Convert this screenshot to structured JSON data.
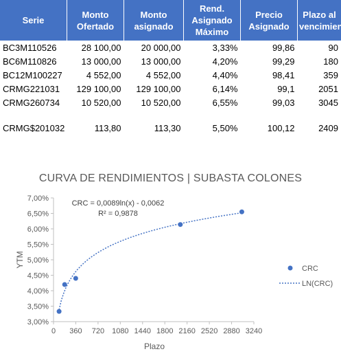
{
  "table": {
    "headers": [
      "Serie",
      "Monto Ofertado",
      "Monto asignado",
      "Rend. Asignado Máximo",
      "Precio Asignado",
      "Plazo al vencimiento"
    ],
    "rows": [
      [
        "BC3M110526",
        "28 100,00",
        "20 000,00",
        "3,33%",
        "99,86",
        "90"
      ],
      [
        "BC6M110826",
        "13 000,00",
        "13 000,00",
        "4,20%",
        "99,29",
        "180"
      ],
      [
        "BC12M100227",
        "4 552,00",
        "4 552,00",
        "4,40%",
        "98,41",
        "359"
      ],
      [
        "CRMG221031",
        "129 100,00",
        "129 100,00",
        "6,14%",
        "99,1",
        "2051"
      ],
      [
        "CRMG260734",
        "10 520,00",
        "10 520,00",
        "6,55%",
        "99,03",
        "3045"
      ]
    ],
    "extra_row": [
      "CRMG$201032",
      "113,80",
      "113,30",
      "5,50%",
      "100,12",
      "2409"
    ]
  },
  "chart_data": {
    "type": "scatter",
    "title": "CURVA DE RENDIMIENTOS | SUBASTA COLONES",
    "xlabel": "Plazo",
    "ylabel": "YTM",
    "xlim": [
      0,
      3240
    ],
    "ylim": [
      3.0,
      7.0
    ],
    "xticks": [
      "0",
      "360",
      "720",
      "1080",
      "1440",
      "1800",
      "2160",
      "2520",
      "2880",
      "3240"
    ],
    "yticks": [
      "3,00%",
      "3,50%",
      "4,00%",
      "4,50%",
      "5,00%",
      "5,50%",
      "6,00%",
      "6,50%",
      "7,00%"
    ],
    "series": [
      {
        "name": "CRC",
        "x": [
          90,
          180,
          359,
          2051,
          3045
        ],
        "y": [
          3.33,
          4.2,
          4.4,
          6.14,
          6.55
        ]
      }
    ],
    "trendline": {
      "name": "LN(CRC)",
      "type": "logarithmic",
      "a": 0.0089,
      "b": -0.0062
    },
    "annotations": [
      "CRC = 0,0089ln(x) - 0,0062",
      "R² = 0,9878"
    ],
    "legend": "right",
    "grid": false,
    "colors": {
      "series": "#4472c4",
      "header_bg": "#4472c4",
      "axis": "#bfbfbf"
    }
  }
}
